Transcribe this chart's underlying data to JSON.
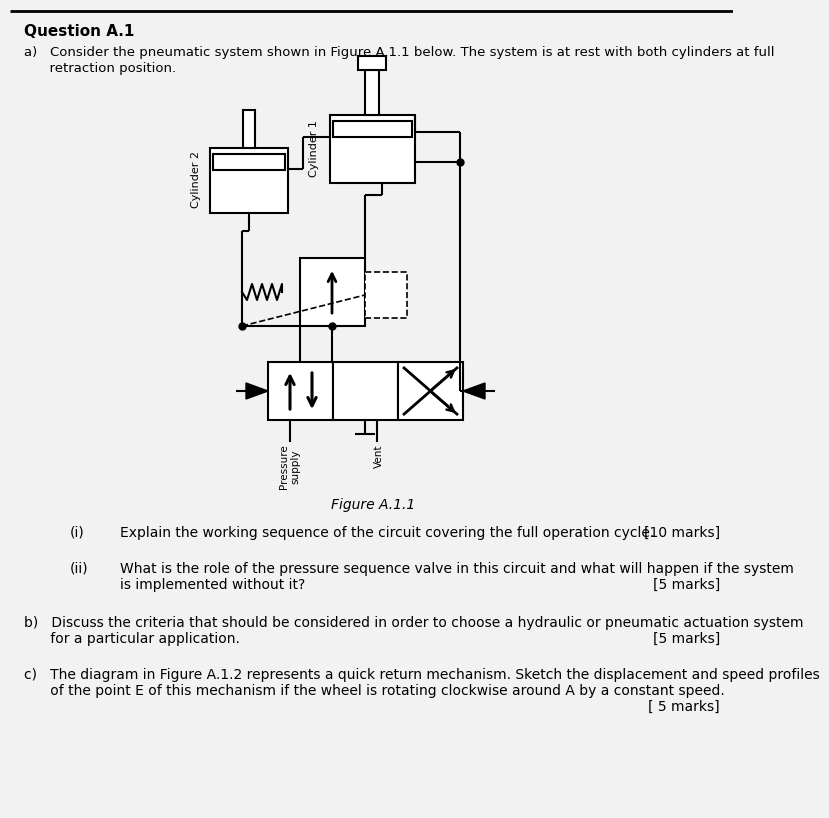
{
  "title": "Question A.1",
  "background_color": "#f2f2f2",
  "text_color": "#000000",
  "line_color": "#000000",
  "fig_width": 7.23,
  "fig_height": 7.98,
  "q_a_line1": "a)   Consider the pneumatic system shown in Figure A.1.1 below. The system is at rest with both cylinders at full",
  "q_a_line2": "      retraction position.",
  "figure_caption": "Figure A.1.1",
  "q_i_label": "(i)",
  "q_i_text": "Explain the working sequence of the circuit covering the full operation cycle.",
  "q_i_marks": "[10 marks]",
  "q_ii_label": "(ii)",
  "q_ii_text1": "What is the role of the pressure sequence valve in this circuit and what will happen if the system",
  "q_ii_text2": "is implemented without it?",
  "q_ii_marks": "[5 marks]",
  "q_b_line1": "b)   Discuss the criteria that should be considered in order to choose a hydraulic or pneumatic actuation system",
  "q_b_line2": "      for a particular application.",
  "q_b_marks": "[5 marks]",
  "q_c_line1": "c)   The diagram in Figure A.1.2 represents a quick return mechanism. Sketch the displacement and speed profiles",
  "q_c_line2": "      of the point E of this mechanism if the wheel is rotating clockwise around A by a constant speed.",
  "q_c_marks": "[ 5 marks]",
  "pressure_label": "Pressure\nsupply",
  "vent_label": "Vent",
  "cyl1_label": "Cylinder 1",
  "cyl2_label": "Cylinder 2"
}
